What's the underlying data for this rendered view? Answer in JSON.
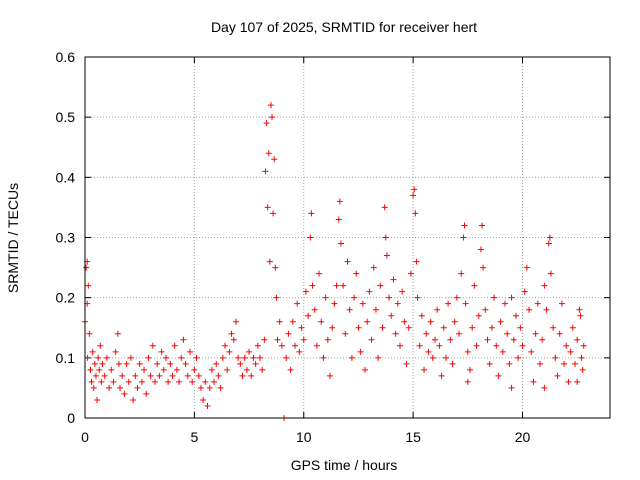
{
  "chart_data": {
    "type": "scatter",
    "title": "Day 107 of 2025, SRMTID for receiver hert",
    "xlabel": "GPS time / hours",
    "ylabel": "SRMTID / TECUs",
    "xlim": [
      0,
      24
    ],
    "ylim": [
      0,
      0.6
    ],
    "x_ticks": [
      0,
      5,
      10,
      15,
      20
    ],
    "x_tick_labels": [
      "0",
      "5",
      "10",
      "15",
      "20"
    ],
    "y_ticks": [
      0,
      0.1,
      0.2,
      0.3,
      0.4,
      0.5,
      0.6
    ],
    "y_tick_labels": [
      "0",
      "0.1",
      "0.2",
      "0.3",
      "0.4",
      "0.5",
      "0.6"
    ],
    "grid": true,
    "marker": "+",
    "series": [
      {
        "name": "SRMTID",
        "color": "#ff0000",
        "points": [
          [
            0.0,
            0.16
          ],
          [
            0.05,
            0.25
          ],
          [
            0.1,
            0.26
          ],
          [
            0.15,
            0.22
          ],
          [
            0.1,
            0.19
          ],
          [
            0.2,
            0.14
          ],
          [
            0.12,
            0.1
          ],
          [
            0.25,
            0.08
          ],
          [
            0.3,
            0.06
          ],
          [
            0.35,
            0.11
          ],
          [
            0.4,
            0.05
          ],
          [
            0.45,
            0.09
          ],
          [
            0.5,
            0.07
          ],
          [
            0.55,
            0.03
          ],
          [
            0.6,
            0.1
          ],
          [
            0.65,
            0.08
          ],
          [
            0.7,
            0.12
          ],
          [
            0.75,
            0.06
          ],
          [
            0.8,
            0.09
          ],
          [
            0.9,
            0.07
          ],
          [
            1.0,
            0.1
          ],
          [
            1.1,
            0.05
          ],
          [
            1.2,
            0.08
          ],
          [
            1.3,
            0.06
          ],
          [
            1.4,
            0.11
          ],
          [
            1.5,
            0.14
          ],
          [
            1.55,
            0.09
          ],
          [
            1.6,
            0.05
          ],
          [
            1.7,
            0.07
          ],
          [
            1.8,
            0.04
          ],
          [
            1.9,
            0.09
          ],
          [
            2.0,
            0.06
          ],
          [
            2.1,
            0.1
          ],
          [
            2.2,
            0.03
          ],
          [
            2.3,
            0.07
          ],
          [
            2.4,
            0.05
          ],
          [
            2.5,
            0.09
          ],
          [
            2.6,
            0.06
          ],
          [
            2.7,
            0.08
          ],
          [
            2.8,
            0.04
          ],
          [
            2.9,
            0.1
          ],
          [
            3.0,
            0.07
          ],
          [
            3.1,
            0.12
          ],
          [
            3.2,
            0.06
          ],
          [
            3.3,
            0.09
          ],
          [
            3.4,
            0.07
          ],
          [
            3.5,
            0.11
          ],
          [
            3.6,
            0.08
          ],
          [
            3.7,
            0.1
          ],
          [
            3.8,
            0.06
          ],
          [
            3.9,
            0.09
          ],
          [
            4.0,
            0.07
          ],
          [
            4.1,
            0.12
          ],
          [
            4.2,
            0.08
          ],
          [
            4.3,
            0.06
          ],
          [
            4.4,
            0.1
          ],
          [
            4.5,
            0.13
          ],
          [
            4.6,
            0.09
          ],
          [
            4.7,
            0.07
          ],
          [
            4.8,
            0.11
          ],
          [
            4.9,
            0.06
          ],
          [
            5.0,
            0.08
          ],
          [
            5.1,
            0.1
          ],
          [
            5.2,
            0.07
          ],
          [
            5.3,
            0.05
          ],
          [
            5.4,
            0.03
          ],
          [
            5.5,
            0.06
          ],
          [
            5.6,
            0.02
          ],
          [
            5.7,
            0.05
          ],
          [
            5.8,
            0.08
          ],
          [
            5.9,
            0.06
          ],
          [
            6.0,
            0.09
          ],
          [
            6.1,
            0.07
          ],
          [
            6.2,
            0.05
          ],
          [
            6.3,
            0.1
          ],
          [
            6.4,
            0.12
          ],
          [
            6.5,
            0.08
          ],
          [
            6.6,
            0.11
          ],
          [
            6.7,
            0.14
          ],
          [
            6.8,
            0.13
          ],
          [
            6.9,
            0.16
          ],
          [
            7.0,
            0.1
          ],
          [
            7.1,
            0.09
          ],
          [
            7.2,
            0.07
          ],
          [
            7.3,
            0.1
          ],
          [
            7.4,
            0.08
          ],
          [
            7.5,
            0.11
          ],
          [
            7.6,
            0.07
          ],
          [
            7.7,
            0.1
          ],
          [
            7.8,
            0.09
          ],
          [
            7.9,
            0.12
          ],
          [
            8.0,
            0.1
          ],
          [
            8.1,
            0.08
          ],
          [
            8.2,
            0.13
          ],
          [
            8.25,
            0.41
          ],
          [
            8.3,
            0.49
          ],
          [
            8.35,
            0.35
          ],
          [
            8.4,
            0.44
          ],
          [
            8.45,
            0.26
          ],
          [
            8.5,
            0.52
          ],
          [
            8.55,
            0.5
          ],
          [
            8.6,
            0.34
          ],
          [
            8.65,
            0.43
          ],
          [
            8.7,
            0.25
          ],
          [
            8.75,
            0.2
          ],
          [
            8.8,
            0.13
          ],
          [
            8.9,
            0.16
          ],
          [
            9.0,
            0.12
          ],
          [
            9.1,
            0.0
          ],
          [
            9.2,
            0.1
          ],
          [
            9.3,
            0.14
          ],
          [
            9.4,
            0.08
          ],
          [
            9.5,
            0.16
          ],
          [
            9.6,
            0.12
          ],
          [
            9.7,
            0.19
          ],
          [
            9.8,
            0.11
          ],
          [
            9.9,
            0.15
          ],
          [
            10.0,
            0.13
          ],
          [
            10.1,
            0.21
          ],
          [
            10.2,
            0.17
          ],
          [
            10.3,
            0.3
          ],
          [
            10.35,
            0.34
          ],
          [
            10.4,
            0.22
          ],
          [
            10.5,
            0.18
          ],
          [
            10.6,
            0.12
          ],
          [
            10.7,
            0.24
          ],
          [
            10.8,
            0.16
          ],
          [
            10.9,
            0.1
          ],
          [
            11.0,
            0.2
          ],
          [
            11.1,
            0.13
          ],
          [
            11.2,
            0.07
          ],
          [
            11.3,
            0.15
          ],
          [
            11.4,
            0.19
          ],
          [
            11.5,
            0.22
          ],
          [
            11.6,
            0.33
          ],
          [
            11.65,
            0.36
          ],
          [
            11.7,
            0.29
          ],
          [
            11.8,
            0.22
          ],
          [
            11.9,
            0.14
          ],
          [
            12.0,
            0.26
          ],
          [
            12.1,
            0.18
          ],
          [
            12.2,
            0.1
          ],
          [
            12.3,
            0.2
          ],
          [
            12.4,
            0.24
          ],
          [
            12.5,
            0.15
          ],
          [
            12.6,
            0.11
          ],
          [
            12.7,
            0.19
          ],
          [
            12.8,
            0.08
          ],
          [
            12.9,
            0.16
          ],
          [
            13.0,
            0.21
          ],
          [
            13.1,
            0.13
          ],
          [
            13.2,
            0.25
          ],
          [
            13.3,
            0.18
          ],
          [
            13.4,
            0.1
          ],
          [
            13.5,
            0.22
          ],
          [
            13.6,
            0.15
          ],
          [
            13.7,
            0.35
          ],
          [
            13.75,
            0.3
          ],
          [
            13.8,
            0.27
          ],
          [
            13.9,
            0.2
          ],
          [
            14.0,
            0.17
          ],
          [
            14.1,
            0.23
          ],
          [
            14.2,
            0.14
          ],
          [
            14.3,
            0.19
          ],
          [
            14.4,
            0.12
          ],
          [
            14.5,
            0.21
          ],
          [
            14.6,
            0.16
          ],
          [
            14.7,
            0.09
          ],
          [
            14.8,
            0.15
          ],
          [
            14.9,
            0.24
          ],
          [
            15.0,
            0.37
          ],
          [
            15.05,
            0.38
          ],
          [
            15.1,
            0.34
          ],
          [
            15.15,
            0.26
          ],
          [
            15.2,
            0.2
          ],
          [
            15.3,
            0.12
          ],
          [
            15.4,
            0.17
          ],
          [
            15.5,
            0.08
          ],
          [
            15.6,
            0.14
          ],
          [
            15.7,
            0.11
          ],
          [
            15.8,
            0.16
          ],
          [
            15.9,
            0.1
          ],
          [
            16.0,
            0.13
          ],
          [
            16.1,
            0.18
          ],
          [
            16.2,
            0.12
          ],
          [
            16.3,
            0.07
          ],
          [
            16.4,
            0.15
          ],
          [
            16.5,
            0.1
          ],
          [
            16.6,
            0.19
          ],
          [
            16.7,
            0.13
          ],
          [
            16.8,
            0.09
          ],
          [
            16.9,
            0.16
          ],
          [
            17.0,
            0.2
          ],
          [
            17.1,
            0.14
          ],
          [
            17.2,
            0.24
          ],
          [
            17.3,
            0.3
          ],
          [
            17.35,
            0.32
          ],
          [
            17.4,
            0.19
          ],
          [
            17.5,
            0.11
          ],
          [
            17.6,
            0.08
          ],
          [
            17.7,
            0.15
          ],
          [
            17.8,
            0.22
          ],
          [
            17.9,
            0.12
          ],
          [
            18.0,
            0.17
          ],
          [
            18.1,
            0.28
          ],
          [
            18.15,
            0.32
          ],
          [
            18.2,
            0.25
          ],
          [
            18.3,
            0.18
          ],
          [
            18.4,
            0.13
          ],
          [
            18.5,
            0.09
          ],
          [
            18.6,
            0.15
          ],
          [
            18.7,
            0.2
          ],
          [
            18.8,
            0.12
          ],
          [
            18.9,
            0.07
          ],
          [
            19.0,
            0.16
          ],
          [
            19.1,
            0.11
          ],
          [
            19.2,
            0.19
          ],
          [
            19.3,
            0.14
          ],
          [
            19.4,
            0.09
          ],
          [
            19.5,
            0.2
          ],
          [
            19.6,
            0.13
          ],
          [
            19.7,
            0.17
          ],
          [
            19.8,
            0.1
          ],
          [
            19.9,
            0.15
          ],
          [
            20.0,
            0.12
          ],
          [
            20.1,
            0.21
          ],
          [
            20.2,
            0.25
          ],
          [
            20.3,
            0.18
          ],
          [
            20.4,
            0.11
          ],
          [
            20.5,
            0.06
          ],
          [
            20.6,
            0.14
          ],
          [
            20.7,
            0.19
          ],
          [
            20.8,
            0.09
          ],
          [
            20.9,
            0.13
          ],
          [
            21.0,
            0.22
          ],
          [
            21.1,
            0.18
          ],
          [
            21.2,
            0.29
          ],
          [
            21.25,
            0.3
          ],
          [
            21.3,
            0.24
          ],
          [
            21.4,
            0.15
          ],
          [
            21.5,
            0.1
          ],
          [
            21.6,
            0.07
          ],
          [
            21.7,
            0.14
          ],
          [
            21.8,
            0.19
          ],
          [
            21.9,
            0.09
          ],
          [
            22.0,
            0.12
          ],
          [
            22.1,
            0.06
          ],
          [
            22.2,
            0.11
          ],
          [
            22.3,
            0.15
          ],
          [
            22.4,
            0.09
          ],
          [
            22.5,
            0.13
          ],
          [
            22.6,
            0.18
          ],
          [
            22.65,
            0.17
          ],
          [
            22.7,
            0.1
          ],
          [
            22.75,
            0.08
          ],
          [
            22.8,
            0.12
          ],
          [
            22.5,
            0.06
          ],
          [
            21.0,
            0.05
          ],
          [
            19.5,
            0.05
          ],
          [
            17.5,
            0.06
          ]
        ]
      }
    ]
  }
}
